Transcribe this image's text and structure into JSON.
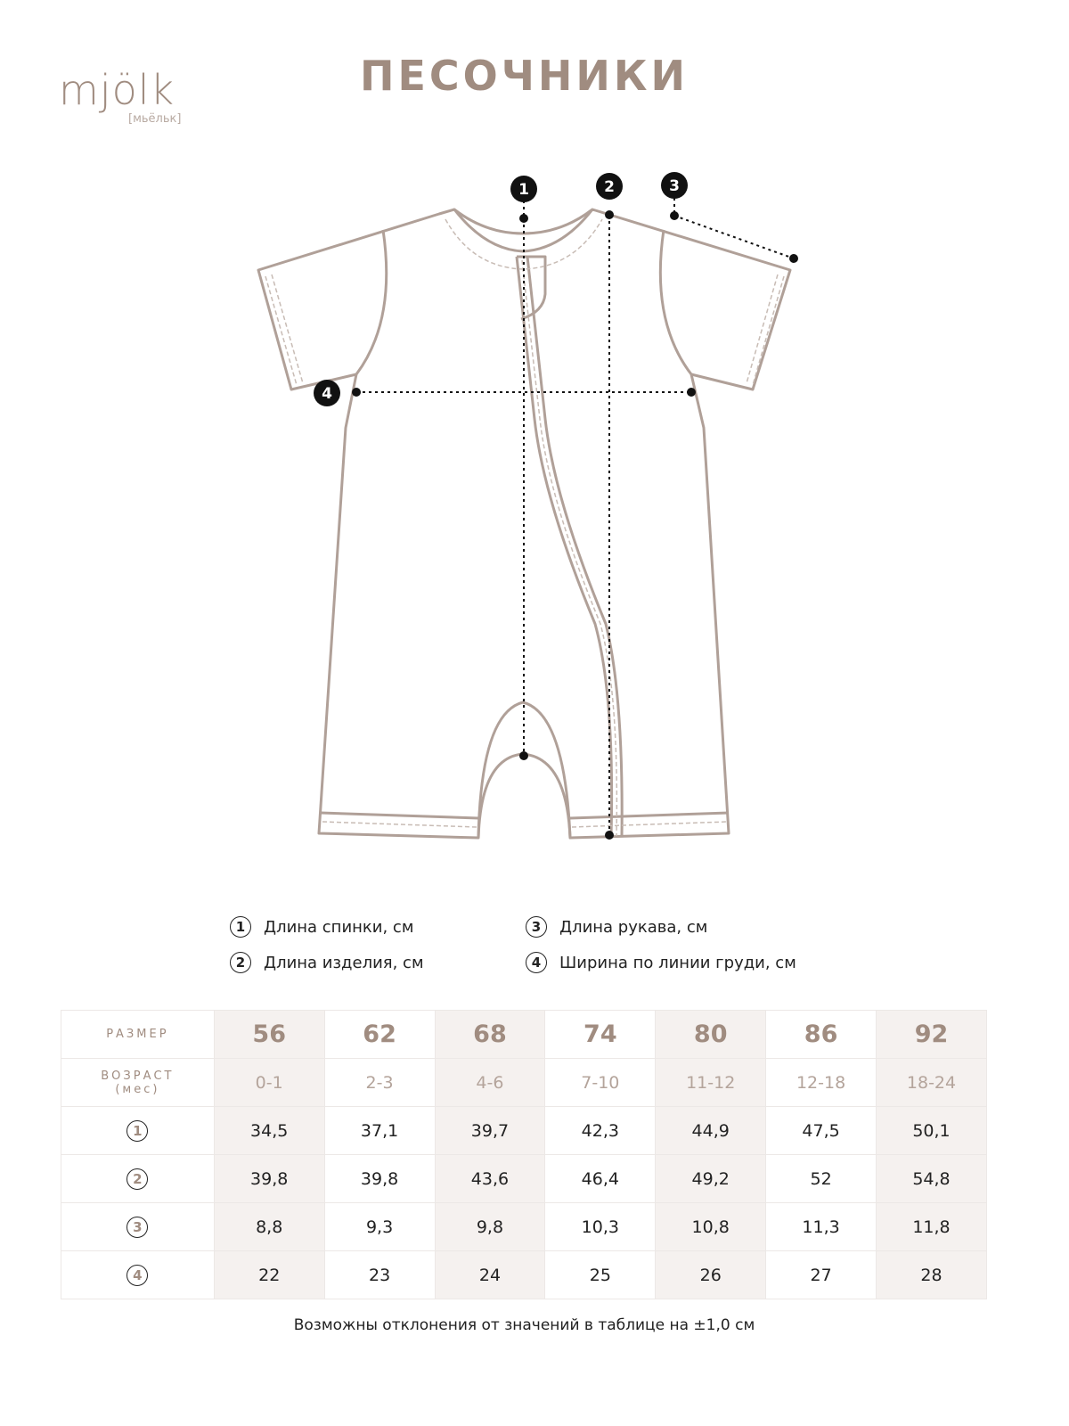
{
  "brand": {
    "logo": "mjölk",
    "logo_sub": "[мьёльк]"
  },
  "title": "ПЕСОЧНИКИ",
  "colors": {
    "accent": "#a08c80",
    "shade": "#f5f1ef",
    "outline": "#b0a098"
  },
  "legend": [
    {
      "num": "1",
      "label": "Длина спинки, см"
    },
    {
      "num": "2",
      "label": "Длина изделия, см"
    },
    {
      "num": "3",
      "label": "Длина рукава, см"
    },
    {
      "num": "4",
      "label": "Ширина по линии груди, см"
    }
  ],
  "table": {
    "size_label": "РАЗМЕР",
    "age_label": "ВОЗРАСТ",
    "age_unit": "(мес)",
    "sizes": [
      "56",
      "62",
      "68",
      "74",
      "80",
      "86",
      "92"
    ],
    "ages": [
      "0-1",
      "2-3",
      "4-6",
      "7-10",
      "11-12",
      "12-18",
      "18-24"
    ],
    "rows": [
      {
        "num": "1",
        "values": [
          "34,5",
          "37,1",
          "39,7",
          "42,3",
          "44,9",
          "47,5",
          "50,1"
        ]
      },
      {
        "num": "2",
        "values": [
          "39,8",
          "39,8",
          "43,6",
          "46,4",
          "49,2",
          "52",
          "54,8"
        ]
      },
      {
        "num": "3",
        "values": [
          "8,8",
          "9,3",
          "9,8",
          "10,3",
          "10,8",
          "11,3",
          "11,8"
        ]
      },
      {
        "num": "4",
        "values": [
          "22",
          "23",
          "24",
          "25",
          "26",
          "27",
          "28"
        ]
      }
    ]
  },
  "note": "Возможны отклонения от значений в таблице на ±1,0 см"
}
